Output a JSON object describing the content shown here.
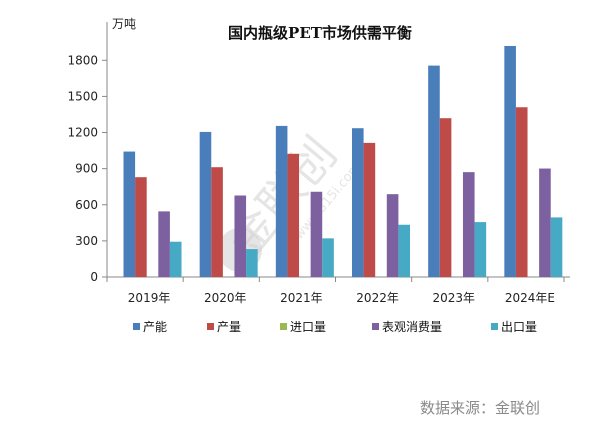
{
  "chart_data": {
    "type": "bar",
    "title": "国内瓶级PET市场供需平衡",
    "ylabel": "万吨",
    "xlabel": "",
    "ylim": [
      0,
      2100
    ],
    "yticks": [
      0,
      300,
      600,
      900,
      1200,
      1500,
      1800
    ],
    "ytick_labels": [
      "0",
      "300",
      "600",
      "900",
      "1200",
      "1500",
      "1800"
    ],
    "grid": false,
    "legend_position": "bottom",
    "categories": [
      "2019年",
      "2020年",
      "2021年",
      "2022年",
      "2023年",
      "2024年E"
    ],
    "series": [
      {
        "name": "产能",
        "color": "#4a7ebb",
        "values": [
          1042,
          1205,
          1255,
          1236,
          1756,
          1919
        ]
      },
      {
        "name": "产量",
        "color": "#be4b48",
        "values": [
          829,
          912,
          1023,
          1114,
          1319,
          1410
        ]
      },
      {
        "name": "进口量",
        "color": "#98b954",
        "values": [
          0,
          0,
          0,
          0,
          0,
          0
        ]
      },
      {
        "name": "表观消费量",
        "color": "#7d60a0",
        "values": [
          545,
          677,
          708,
          688,
          871,
          901
        ]
      },
      {
        "name": "出口量",
        "color": "#46aac5",
        "values": [
          293,
          232,
          321,
          434,
          456,
          495
        ]
      }
    ]
  },
  "source": "数据来源：金联创",
  "watermark": {
    "brand": "金联创",
    "url": "www.315i.com",
    "mark": "®"
  }
}
